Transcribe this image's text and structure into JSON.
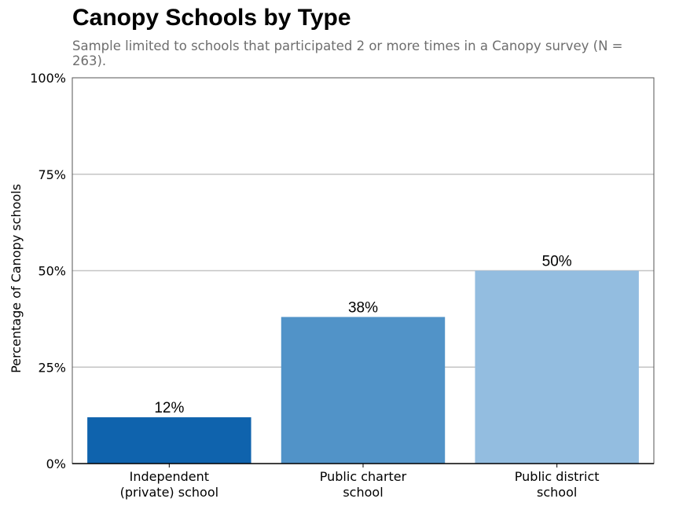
{
  "chart_data": {
    "type": "bar",
    "title": "Canopy Schools by Type",
    "subtitle": "Sample limited to schools that participated 2 or more times in a Canopy survey (N = 263).",
    "xlabel": "",
    "ylabel": "Percentage of Canopy schools",
    "categories": [
      [
        "Independent",
        "(private) school"
      ],
      [
        "Public charter",
        "school"
      ],
      [
        "Public district",
        "school"
      ]
    ],
    "values": [
      12,
      38,
      50
    ],
    "data_labels": [
      "12%",
      "38%",
      "50%"
    ],
    "colors": [
      "#0f63ad",
      "#5193c8",
      "#93bde0"
    ],
    "ylim": [
      0,
      100
    ],
    "yticks": [
      0,
      25,
      50,
      75,
      100
    ],
    "ytick_labels": [
      "0%",
      "25%",
      "50%",
      "75%",
      "100%"
    ],
    "grid": true,
    "gridline_color": "#c4c4c4"
  }
}
